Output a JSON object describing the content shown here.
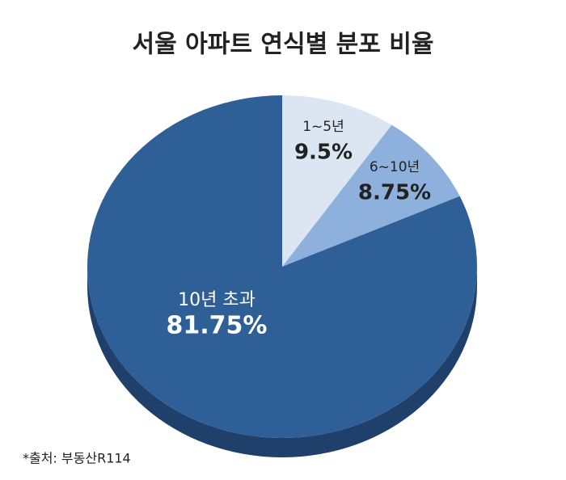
{
  "chart_data": {
    "type": "pie",
    "title": "서울 아파트 연식별 분포 비율",
    "categories": [
      "1~5년",
      "6~10년",
      "10년 초과"
    ],
    "values": [
      9.5,
      8.75,
      81.75
    ],
    "value_labels": [
      "9.5%",
      "8.75%",
      "81.75%"
    ],
    "colors": [
      "#dce6f2",
      "#8eb0dc",
      "#2e5f97"
    ],
    "source": "*출처: 부동산R114"
  }
}
